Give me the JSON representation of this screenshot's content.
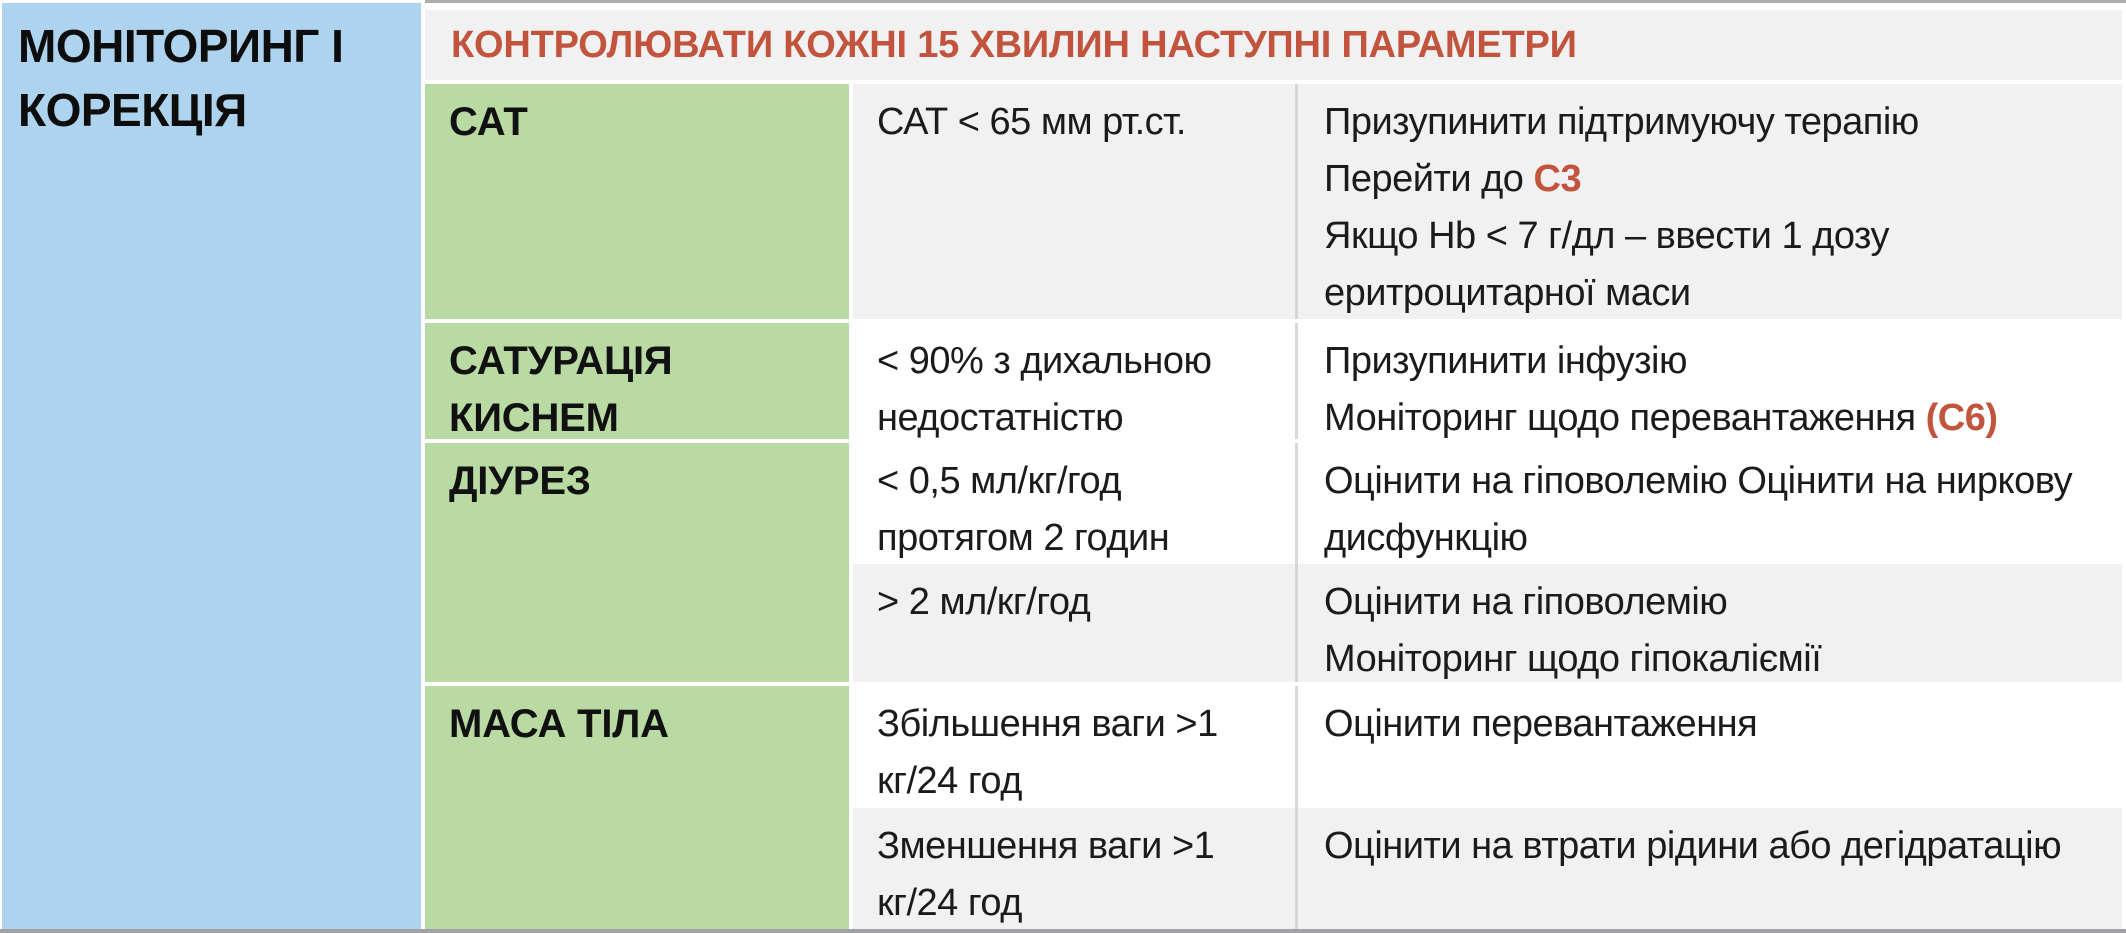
{
  "sidebar": {
    "title_lines": [
      "МОНІТОРИНГ І",
      "КОРЕКЦІЯ"
    ]
  },
  "table": {
    "header": "КОНТРОЛЮВАТИ КОЖНІ 15 ХВИЛИН НАСТУПНІ ПАРАМЕТРИ",
    "groups": [
      {
        "param_lines": [
          "САТ"
        ],
        "subrows": [
          {
            "shaded": true,
            "condition_lines": [
              "САТ < 65 мм рт.ст."
            ],
            "action_lines": [
              [
                {
                  "t": "Призупинити підтримуючу терапію"
                }
              ],
              [
                {
                  "t": "Перейти до "
                },
                {
                  "t": "С3",
                  "accent": true
                }
              ],
              [
                {
                  "t": "Якщо Hb < 7 г/дл – ввести 1 дозу"
                }
              ],
              [
                {
                  "t": "еритроцитарної маси"
                }
              ]
            ]
          }
        ]
      },
      {
        "param_lines": [
          "САТУРАЦІЯ",
          "КИСНЕМ"
        ],
        "subrows": [
          {
            "shaded": false,
            "condition_lines": [
              "< 90% з дихальною",
              "недостатністю"
            ],
            "action_lines": [
              [
                {
                  "t": "Призупинити інфузію"
                }
              ],
              [
                {
                  "t": "Моніторинг щодо перевантаження "
                },
                {
                  "t": "(С6)",
                  "accent": true
                }
              ]
            ]
          }
        ]
      },
      {
        "param_lines": [
          "ДІУРЕЗ"
        ],
        "subrows": [
          {
            "shaded": false,
            "condition_lines": [
              "< 0,5 мл/кг/год",
              "протягом 2 годин"
            ],
            "action_lines": [
              [
                {
                  "t": "Оцінити на гіповолемію Оцінити на ниркову"
                }
              ],
              [
                {
                  "t": "дисфункцію"
                }
              ]
            ]
          },
          {
            "shaded": true,
            "condition_lines": [
              "> 2 мл/кг/год"
            ],
            "action_lines": [
              [
                {
                  "t": "Оцінити на гіповолемію"
                }
              ],
              [
                {
                  "t": "Моніторинг щодо гіпокаліємії"
                }
              ]
            ]
          }
        ]
      },
      {
        "param_lines": [
          "МАСА ТІЛА"
        ],
        "subrows": [
          {
            "shaded": false,
            "condition_lines": [
              "Збільшення ваги >1",
              "кг/24 год"
            ],
            "action_lines": [
              [
                {
                  "t": "Оцінити перевантаження"
                }
              ]
            ]
          },
          {
            "shaded": true,
            "condition_lines": [
              "Зменшення ваги >1",
              "кг/24 год"
            ],
            "action_lines": [
              [
                {
                  "t": "Оцінити на втрати рідини або дегідратацію"
                }
              ]
            ]
          }
        ]
      }
    ]
  },
  "colors": {
    "sidebar_bg": "#ADD3EE",
    "param_bg": "#B9DAA3",
    "shaded_bg": "#F1F1F1",
    "accent_text": "#C2533C"
  }
}
